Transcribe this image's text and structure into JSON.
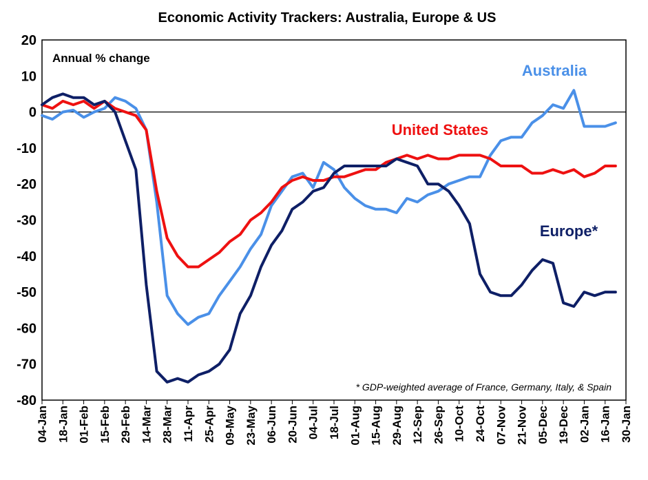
{
  "chart_data": {
    "type": "line",
    "title": "Economic Activity Trackers: Australia, Europe & US",
    "unit_label": "Annual % change",
    "footnote": "* GDP-weighted  average  of France, Germany, Italy, & Spain",
    "ylim": [
      -80,
      20
    ],
    "yticks": [
      20,
      10,
      0,
      -10,
      -20,
      -30,
      -40,
      -50,
      -60,
      -70,
      -80
    ],
    "xtick_labels": [
      "04-Jan",
      "18-Jan",
      "01-Feb",
      "15-Feb",
      "29-Feb",
      "14-Mar",
      "28-Mar",
      "11-Apr",
      "25-Apr",
      "09-May",
      "23-May",
      "06-Jun",
      "20-Jun",
      "04-Jul",
      "18-Jul",
      "01-Aug",
      "15-Aug",
      "29-Aug",
      "12-Sep",
      "26-Sep",
      "10-Oct",
      "24-Oct",
      "07-Nov",
      "21-Nov",
      "05-Dec",
      "19-Dec",
      "02-Jan",
      "16-Jan",
      "30-Jan"
    ],
    "grid": false,
    "series": [
      {
        "name": "Australia",
        "color": "#4a90e8",
        "values": [
          -1,
          -2,
          0,
          0.5,
          -1.5,
          0,
          1,
          4,
          3,
          1,
          -5,
          -25,
          -51,
          -56,
          -59,
          -57,
          -56,
          -51,
          -47,
          -43,
          -38,
          -34,
          -26,
          -22,
          -18,
          -17,
          -21,
          -14,
          -16,
          -21,
          -24,
          -26,
          -27,
          -27,
          -28,
          -24,
          -25,
          -23,
          -22,
          -20,
          -19,
          -18,
          -18,
          -12,
          -8,
          -7,
          -7,
          -3,
          -1,
          2,
          1,
          6,
          -4,
          -4,
          -4,
          -3
        ]
      },
      {
        "name": "United States",
        "color": "#ee1111",
        "values": [
          2,
          1,
          3,
          2,
          3,
          1,
          3,
          1,
          0,
          -1,
          -5,
          -22,
          -35,
          -40,
          -43,
          -43,
          -41,
          -39,
          -36,
          -34,
          -30,
          -28,
          -25,
          -21,
          -19,
          -18,
          -19,
          -19,
          -18,
          -18,
          -17,
          -16,
          -16,
          -14,
          -13,
          -12,
          -13,
          -12,
          -13,
          -13,
          -12,
          -12,
          -12,
          -13,
          -15,
          -15,
          -15,
          -17,
          -17,
          -16,
          -17,
          -16,
          -18,
          -17,
          -15,
          -15
        ]
      },
      {
        "name": "Europe*",
        "color": "#0e1f66",
        "values": [
          2,
          4,
          5,
          4,
          4,
          2,
          3,
          0,
          -8,
          -16,
          -48,
          -72,
          -75,
          -74,
          -75,
          -73,
          -72,
          -70,
          -66,
          -56,
          -51,
          -43,
          -37,
          -33,
          -27,
          -25,
          -22,
          -21,
          -17,
          -15,
          -15,
          -15,
          -15,
          -15,
          -13,
          -14,
          -15,
          -20,
          -20,
          -22,
          -26,
          -31,
          -45,
          -50,
          -51,
          -51,
          -48,
          -44,
          -41,
          -42,
          -53,
          -54,
          -50,
          -51,
          -50,
          -50
        ]
      }
    ]
  }
}
